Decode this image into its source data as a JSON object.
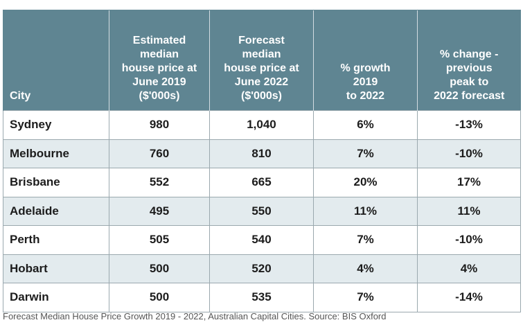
{
  "table": {
    "headers": [
      [
        "City"
      ],
      [
        "Estimated",
        "median",
        "house price at",
        "June 2019",
        "($'000s)"
      ],
      [
        "Forecast",
        "median",
        "house price at",
        "June 2022",
        "($'000s)"
      ],
      [
        "% growth",
        "2019",
        "to 2022"
      ],
      [
        "% change -",
        "previous",
        "peak to",
        "2022 forecast"
      ]
    ],
    "rows": [
      [
        "Sydney",
        "980",
        "1,040",
        "6%",
        "-13%"
      ],
      [
        "Melbourne",
        "760",
        "810",
        "7%",
        "-10%"
      ],
      [
        "Brisbane",
        "552",
        "665",
        "20%",
        "17%"
      ],
      [
        "Adelaide",
        "495",
        "550",
        "11%",
        "11%"
      ],
      [
        "Perth",
        "505",
        "540",
        "7%",
        "-10%"
      ],
      [
        "Hobart",
        "500",
        "520",
        "4%",
        "4%"
      ],
      [
        "Darwin",
        "500",
        "535",
        "7%",
        "-14%"
      ]
    ]
  },
  "caption": "Forecast Median House Price Growth 2019 - 2022, Australian Capital Cities. Source: BIS Oxford",
  "colors": {
    "header_bg": "#5f8592",
    "header_text": "#ffffff",
    "row_alt_bg": "#e3ebee"
  }
}
